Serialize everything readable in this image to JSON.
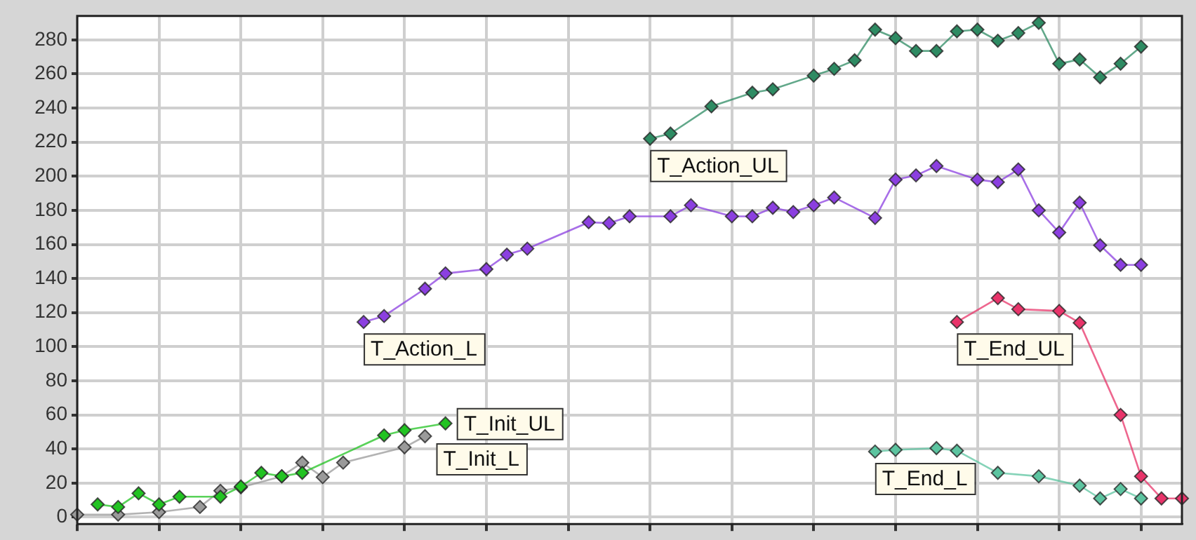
{
  "chart_data": {
    "type": "line",
    "marker": "diamond",
    "grid": true,
    "tick_labels": "y",
    "categories": [
      null,
      null,
      null,
      null,
      null,
      null,
      null,
      null,
      null,
      null,
      null,
      null,
      null,
      null,
      null,
      null,
      null,
      null,
      null,
      null,
      null,
      null,
      null,
      null,
      null,
      null,
      null,
      null,
      null,
      null,
      null,
      null,
      null,
      null,
      null,
      null,
      null,
      null,
      null,
      null,
      null,
      null,
      null,
      null,
      null,
      null,
      null,
      null,
      null,
      null,
      null,
      null,
      null,
      null,
      null
    ],
    "ylim": [
      -4,
      294
    ],
    "yticks": [
      0,
      20,
      40,
      60,
      80,
      100,
      120,
      140,
      160,
      180,
      200,
      220,
      240,
      260,
      280
    ],
    "series": [
      {
        "name": "T_Init_UL",
        "color": "#22c322",
        "values": [
          null,
          7.5,
          6,
          14,
          7.5,
          12,
          null,
          12,
          18,
          26,
          24,
          26,
          null,
          null,
          null,
          48,
          51,
          null,
          55,
          null,
          null,
          null,
          null,
          null,
          null,
          null,
          null,
          null,
          null,
          null,
          null,
          null,
          null,
          null,
          null,
          null,
          null,
          null,
          null,
          null,
          null,
          null,
          null,
          null,
          null,
          null,
          null,
          null,
          null,
          null,
          null,
          null,
          null,
          null,
          null
        ]
      },
      {
        "name": "T_Init_L",
        "color": "#9a9a9a",
        "values": [
          1.5,
          null,
          1.5,
          null,
          3,
          null,
          6,
          15.5,
          17.5,
          null,
          24,
          32,
          23.5,
          32,
          null,
          null,
          41,
          47.5,
          null,
          null,
          null,
          null,
          null,
          null,
          null,
          null,
          null,
          null,
          null,
          null,
          null,
          null,
          null,
          null,
          null,
          null,
          null,
          null,
          null,
          null,
          null,
          null,
          null,
          null,
          null,
          null,
          null,
          null,
          null,
          null,
          null,
          null,
          null,
          null,
          null
        ]
      },
      {
        "name": "T_Action_L",
        "color": "#8b3fe0",
        "values": [
          null,
          null,
          null,
          null,
          null,
          null,
          null,
          null,
          null,
          null,
          null,
          null,
          null,
          null,
          114.5,
          118,
          null,
          134,
          143,
          null,
          145.5,
          154,
          157.5,
          null,
          null,
          173,
          172.5,
          176.5,
          null,
          176.5,
          183,
          null,
          176.5,
          176.5,
          181.5,
          179,
          183,
          187.5,
          null,
          175.5,
          198,
          200.5,
          206,
          null,
          198,
          196.5,
          204,
          180,
          167,
          184.5,
          159.5,
          148,
          148,
          null,
          null
        ]
      },
      {
        "name": "T_Action_UL",
        "color": "#2e8b63",
        "values": [
          null,
          null,
          null,
          null,
          null,
          null,
          null,
          null,
          null,
          null,
          null,
          null,
          null,
          null,
          null,
          null,
          null,
          null,
          null,
          null,
          null,
          null,
          null,
          null,
          null,
          null,
          null,
          null,
          222,
          225,
          null,
          241,
          null,
          249,
          251,
          null,
          259,
          263,
          268,
          286,
          281,
          273.5,
          273.5,
          285,
          286,
          279.5,
          284,
          290,
          266,
          268.5,
          258,
          266,
          276,
          null,
          null
        ]
      },
      {
        "name": "T_End_UL",
        "color": "#e8346a",
        "values": [
          null,
          null,
          null,
          null,
          null,
          null,
          null,
          null,
          null,
          null,
          null,
          null,
          null,
          null,
          null,
          null,
          null,
          null,
          null,
          null,
          null,
          null,
          null,
          null,
          null,
          null,
          null,
          null,
          null,
          null,
          null,
          null,
          null,
          null,
          null,
          null,
          null,
          null,
          null,
          null,
          null,
          null,
          null,
          114.5,
          null,
          128.5,
          122,
          null,
          121,
          114,
          null,
          60,
          24,
          11,
          11
        ]
      },
      {
        "name": "T_End_L",
        "color": "#5cc4a0",
        "values": [
          null,
          null,
          null,
          null,
          null,
          null,
          null,
          null,
          null,
          null,
          null,
          null,
          null,
          null,
          null,
          null,
          null,
          null,
          null,
          null,
          null,
          null,
          null,
          null,
          null,
          null,
          null,
          null,
          null,
          null,
          null,
          null,
          null,
          null,
          null,
          null,
          null,
          null,
          null,
          38.5,
          39.5,
          null,
          40.5,
          39,
          null,
          26,
          null,
          24,
          null,
          18.5,
          11,
          16.5,
          11,
          null,
          null
        ]
      }
    ]
  }
}
